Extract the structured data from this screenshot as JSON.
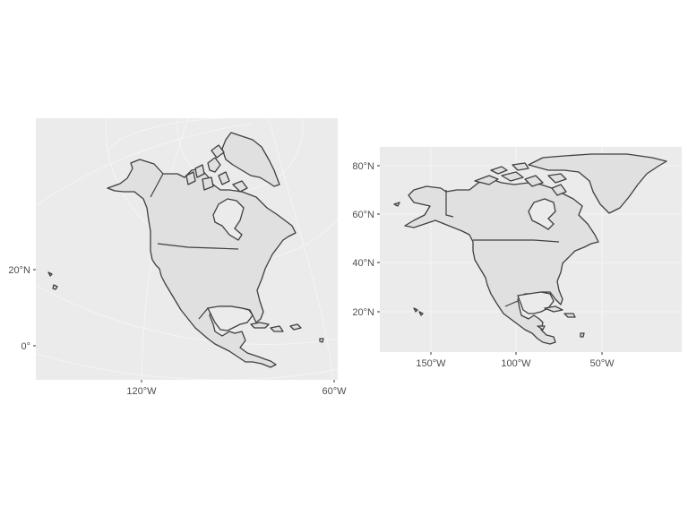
{
  "panels": [
    {
      "id": "left",
      "projection": "polar-conic",
      "y_ticks": [
        "20°N",
        "0°"
      ],
      "x_ticks": [
        "120°W",
        "60°W"
      ]
    },
    {
      "id": "right",
      "projection": "equirectangular",
      "y_ticks": [
        "80°N",
        "60°N",
        "40°N",
        "20°N"
      ],
      "x_ticks": [
        "150°W",
        "100°W",
        "50°W"
      ]
    }
  ],
  "colors": {
    "panel_bg": "#ebebeb",
    "land": "#e0e0e0",
    "outline": "#3f3f3f",
    "gridline": "#ffffff"
  }
}
